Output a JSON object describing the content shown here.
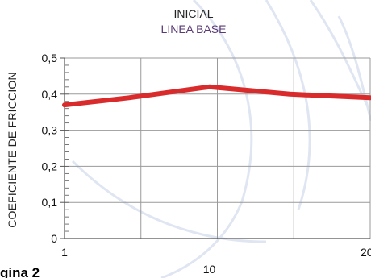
{
  "chart_data": {
    "type": "line",
    "title": "INICIAL",
    "subtitle": "LINEA BASE",
    "xlabel": "",
    "ylabel": "COEFICIENTE DE FRICCION",
    "x_tick_labels": [
      "1",
      "10",
      "20"
    ],
    "y_ticks": [
      0,
      0.1,
      0.2,
      0.3,
      0.4,
      0.5
    ],
    "y_tick_labels": [
      "0",
      "0,1",
      "0,2",
      "0,3",
      "0,4",
      "0,5"
    ],
    "ylim": [
      0,
      0.5
    ],
    "grid": true,
    "series": [
      {
        "color": "#d92b2b",
        "x": [
          1,
          5,
          10,
          15,
          20
        ],
        "values": [
          0.37,
          0.39,
          0.42,
          0.4,
          0.39
        ]
      }
    ]
  },
  "footer": {
    "cut_text": "gina 2"
  },
  "colors": {
    "line": "#d92b2b",
    "grid": "#9a9a9a",
    "axis": "#555555"
  }
}
